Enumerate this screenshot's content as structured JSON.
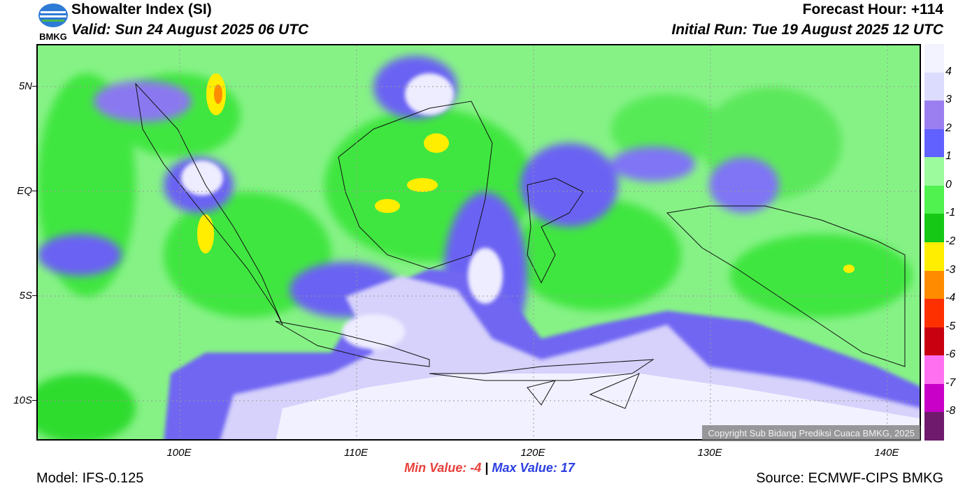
{
  "header": {
    "title": "Showalter Index (SI)",
    "valid": "Valid: Sun 24 August 2025 06 UTC",
    "forecast_hour": "Forecast Hour: +114",
    "initial_run": "Initial Run: Tue 19 August 2025 12 UTC"
  },
  "logo": {
    "text": "BMKG"
  },
  "map": {
    "lat_labels": [
      "5N",
      "EQ",
      "5S",
      "10S"
    ],
    "lon_labels": [
      "100E",
      "110E",
      "120E",
      "130E",
      "140E"
    ],
    "copyright": "Copyright Sub Bidang Prediksi Cuaca BMKG, 2025"
  },
  "colorbar": {
    "labels": [
      "4",
      "3",
      "2",
      "1",
      "0",
      "-1",
      "-2",
      "-3",
      "-4",
      "-5",
      "-6",
      "-7",
      "-8"
    ],
    "colors": [
      "#f3f3ff",
      "#dcdcff",
      "#9b7ff0",
      "#6161ff",
      "#9cfb9c",
      "#4ff24f",
      "#16c816",
      "#ffee00",
      "#ff8c00",
      "#ff3000",
      "#c80010",
      "#ff70f0",
      "#c800c8",
      "#701a6e"
    ]
  },
  "footer": {
    "min_label": "Min Value:  -4",
    "separator": "|",
    "max_label": "Max Value:  17",
    "model": "Model: IFS-0.125",
    "source": "Source: ECMWF-CIPS BMKG"
  }
}
